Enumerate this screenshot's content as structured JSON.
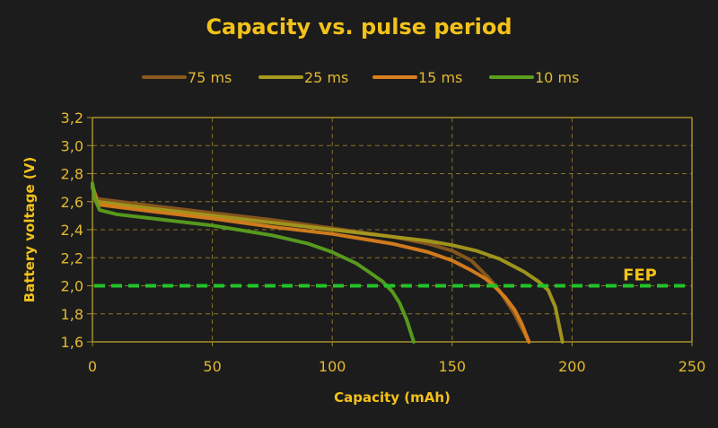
{
  "chart_data": {
    "type": "line",
    "title": "Capacity vs. pulse period",
    "xlabel": "Capacity (mAh)",
    "ylabel": "Battery voltage (V)",
    "xlim": [
      0,
      250
    ],
    "ylim": [
      1.6,
      3.2
    ],
    "xticks": [
      0,
      50,
      100,
      150,
      200,
      250
    ],
    "xtick_labels": [
      "0",
      "50",
      "100",
      "150",
      "200",
      "250"
    ],
    "yticks": [
      1.6,
      1.8,
      2.0,
      2.2,
      2.4,
      2.6,
      2.8,
      3.0,
      3.2
    ],
    "ytick_labels": [
      "1,6",
      "1,8",
      "2,0",
      "2,2",
      "2,4",
      "2,6",
      "2,8",
      "3,0",
      "3,2"
    ],
    "grid": true,
    "legend_position": "top",
    "series": [
      {
        "name": "75 ms",
        "color": "#8a5a1e",
        "x": [
          0,
          2,
          25,
          50,
          75,
          100,
          125,
          140,
          150,
          158,
          165,
          170,
          176,
          182
        ],
        "y": [
          2.71,
          2.62,
          2.57,
          2.52,
          2.47,
          2.41,
          2.35,
          2.3,
          2.25,
          2.18,
          2.06,
          1.96,
          1.8,
          1.6
        ]
      },
      {
        "name": "25 ms",
        "color": "#a59a1c",
        "x": [
          0,
          2,
          25,
          50,
          75,
          100,
          125,
          140,
          150,
          160,
          170,
          180,
          186,
          190,
          193,
          196
        ],
        "y": [
          2.7,
          2.6,
          2.55,
          2.5,
          2.45,
          2.4,
          2.35,
          2.32,
          2.29,
          2.25,
          2.19,
          2.1,
          2.03,
          1.97,
          1.85,
          1.6
        ]
      },
      {
        "name": "15 ms",
        "color": "#d9801e",
        "x": [
          0,
          2,
          25,
          50,
          75,
          100,
          125,
          140,
          150,
          158,
          164,
          168,
          172,
          176,
          179,
          182
        ],
        "y": [
          2.72,
          2.58,
          2.53,
          2.48,
          2.42,
          2.37,
          2.3,
          2.24,
          2.18,
          2.11,
          2.05,
          1.99,
          1.92,
          1.83,
          1.73,
          1.6
        ]
      },
      {
        "name": "10 ms",
        "color": "#5aa01e",
        "x": [
          0,
          1,
          3,
          10,
          25,
          50,
          75,
          90,
          100,
          110,
          116,
          121,
          125,
          128,
          131,
          134
        ],
        "y": [
          2.73,
          2.62,
          2.54,
          2.51,
          2.48,
          2.43,
          2.36,
          2.3,
          2.24,
          2.16,
          2.09,
          2.03,
          1.96,
          1.88,
          1.76,
          1.6
        ]
      }
    ],
    "reference_lines": [
      {
        "name": "FEP",
        "y": 2.0,
        "color": "#22c32a",
        "style": "dashed",
        "label": "FEP"
      }
    ]
  }
}
